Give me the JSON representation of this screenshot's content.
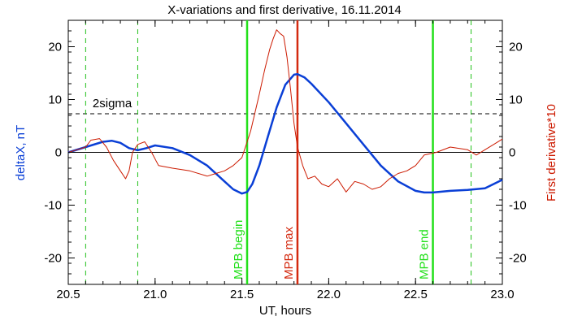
{
  "chart_data": {
    "type": "line",
    "title": "X-variations and first derivative, 16.11.2014",
    "xlabel": "UT, hours",
    "ylabel_left": "deltaX, nT",
    "ylabel_right": "First derivative*10",
    "xlim": [
      20.5,
      23.0
    ],
    "ylim": [
      -25,
      25
    ],
    "x_ticks": [
      "20.5",
      "21.0",
      "21.5",
      "22.0",
      "22.5",
      "23.0"
    ],
    "y_ticks": [
      "-20",
      "-10",
      "0",
      "10",
      "20"
    ],
    "grid": false,
    "colors": {
      "deltaX": "#0a3fd6",
      "derivative": "#cc1a00",
      "mpb_green": "#22e01a",
      "mpb_red": "#d42a10",
      "dashed_green": "#22c01a",
      "axis": "#000000"
    },
    "series": [
      {
        "key": "deltaX",
        "x": [
          20.5,
          20.6,
          20.7,
          20.75,
          20.8,
          20.85,
          20.9,
          20.95,
          21.0,
          21.1,
          21.2,
          21.3,
          21.4,
          21.45,
          21.5,
          21.53,
          21.56,
          21.6,
          21.65,
          21.7,
          21.75,
          21.8,
          21.82,
          21.86,
          21.9,
          22.0,
          22.1,
          22.2,
          22.3,
          22.4,
          22.5,
          22.55,
          22.6,
          22.7,
          22.8,
          22.9,
          23.0
        ],
        "values": [
          0.0,
          1.0,
          2.0,
          2.2,
          1.8,
          0.8,
          0.4,
          0.8,
          1.3,
          0.8,
          -0.5,
          -2.5,
          -5.5,
          -7.0,
          -7.8,
          -7.5,
          -6.0,
          -2.5,
          3.0,
          8.5,
          12.8,
          14.7,
          14.8,
          14.2,
          13.0,
          9.5,
          5.5,
          1.5,
          -2.5,
          -5.5,
          -7.3,
          -7.6,
          -7.6,
          -7.3,
          -7.1,
          -6.8,
          -5.2
        ]
      },
      {
        "key": "derivative",
        "x": [
          20.5,
          20.55,
          20.6,
          20.63,
          20.68,
          20.72,
          20.76,
          20.8,
          20.83,
          20.85,
          20.87,
          20.9,
          20.94,
          20.98,
          21.02,
          21.1,
          21.2,
          21.3,
          21.35,
          21.4,
          21.45,
          21.5,
          21.55,
          21.6,
          21.63,
          21.66,
          21.68,
          21.7,
          21.72,
          21.74,
          21.76,
          21.78,
          21.8,
          21.82,
          21.85,
          21.88,
          21.92,
          21.96,
          22.0,
          22.05,
          22.1,
          22.15,
          22.2,
          22.25,
          22.3,
          22.35,
          22.4,
          22.45,
          22.5,
          22.55,
          22.58,
          22.62,
          22.7,
          22.8,
          22.85,
          22.9,
          22.95,
          23.0
        ],
        "values": [
          0.0,
          0.5,
          1.0,
          2.3,
          2.6,
          1.0,
          -1.5,
          -3.5,
          -5.0,
          -3.5,
          0.0,
          1.5,
          2.0,
          0.0,
          -2.5,
          -3.0,
          -3.5,
          -4.5,
          -4.0,
          -3.5,
          -2.5,
          -1.0,
          4.0,
          11.0,
          15.5,
          19.5,
          21.5,
          23.2,
          22.5,
          22.0,
          18.0,
          12.0,
          5.5,
          1.0,
          -2.5,
          -5.0,
          -4.5,
          -6.0,
          -6.5,
          -5.0,
          -7.5,
          -5.5,
          -6.0,
          -7.0,
          -6.5,
          -5.0,
          -4.0,
          -3.5,
          -2.5,
          -0.5,
          -0.3,
          0.0,
          1.0,
          0.5,
          -0.5,
          0.5,
          1.5,
          2.5
        ]
      }
    ],
    "threshold": {
      "label": "2sigma",
      "value": 7.3,
      "style": "dashed"
    },
    "zero_line": 0,
    "vertical_markers": [
      {
        "x": 21.53,
        "label": "MPB begin",
        "style": "solid",
        "color_key": "mpb_green"
      },
      {
        "x": 21.82,
        "label": "MPB max",
        "style": "solid",
        "color_key": "mpb_red"
      },
      {
        "x": 22.6,
        "label": "MPB end",
        "style": "solid",
        "color_key": "mpb_green"
      },
      {
        "x": 20.6,
        "style": "dashed",
        "color_key": "dashed_green"
      },
      {
        "x": 20.9,
        "style": "dashed",
        "color_key": "dashed_green"
      },
      {
        "x": 22.82,
        "style": "dashed",
        "color_key": "dashed_green"
      }
    ]
  }
}
